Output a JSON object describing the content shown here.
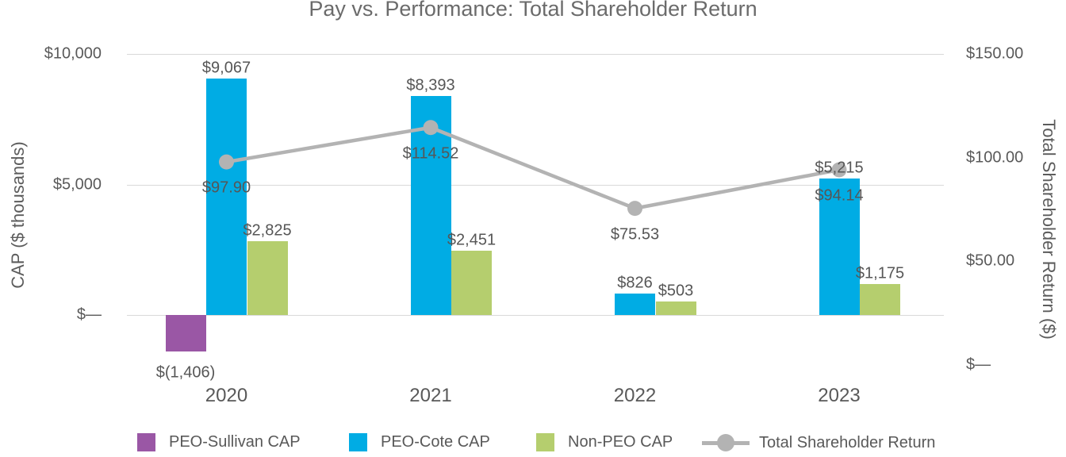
{
  "title": "Pay vs. Performance: Total Shareholder Return",
  "left_axis": {
    "title": "CAP ($ thousands)",
    "ticks": [
      {
        "label": "$10,000",
        "value": 10000
      },
      {
        "label": "$5,000",
        "value": 5000
      },
      {
        "label": "$—",
        "value": 0
      }
    ]
  },
  "right_axis": {
    "title": "Total Shareholder Return ($)",
    "ticks": [
      {
        "label": "$150.00",
        "value": 150
      },
      {
        "label": "$100.00",
        "value": 100
      },
      {
        "label": "$50.00",
        "value": 50
      },
      {
        "label": "$—",
        "value": 0
      }
    ]
  },
  "chart_data": {
    "type": "bar+line",
    "categories": [
      "2020",
      "2021",
      "2022",
      "2023"
    ],
    "left_ylabel": "CAP ($ thousands)",
    "right_ylabel": "Total Shareholder Return ($)",
    "left_ylim": [
      -2000,
      10000
    ],
    "right_ylim": [
      0,
      150
    ],
    "grid": "horizontal, at left-axis ticks",
    "legend_position": "bottom",
    "series": [
      {
        "name": "PEO-Sullivan CAP",
        "type": "bar",
        "axis": "left",
        "color": "#9a57a5",
        "values": [
          -1406,
          null,
          null,
          null
        ],
        "labels": [
          "$(1,406)",
          null,
          null,
          null
        ]
      },
      {
        "name": "PEO-Cote CAP",
        "type": "bar",
        "axis": "left",
        "color": "#00ace4",
        "values": [
          9067,
          8393,
          826,
          5215
        ],
        "labels": [
          "$9,067",
          "$8,393",
          "$826",
          "$5,215"
        ]
      },
      {
        "name": "Non-PEO CAP",
        "type": "bar",
        "axis": "left",
        "color": "#b5ce6e",
        "values": [
          2825,
          2451,
          503,
          1175
        ],
        "labels": [
          "$2,825",
          "$2,451",
          "$503",
          "$1,175"
        ]
      },
      {
        "name": "Total Shareholder Return",
        "type": "line",
        "axis": "right",
        "color": "#b3b3b3",
        "values": [
          97.9,
          114.52,
          75.53,
          94.14
        ],
        "labels": [
          "$97.90",
          "$114.52",
          "$75.53",
          "$94.14"
        ]
      }
    ]
  },
  "legend": [
    {
      "label": "PEO-Sullivan CAP",
      "swatch": "square",
      "color": "#9a57a5"
    },
    {
      "label": "PEO-Cote CAP",
      "swatch": "square",
      "color": "#00ace4"
    },
    {
      "label": "Non-PEO CAP",
      "swatch": "square",
      "color": "#b5ce6e"
    },
    {
      "label": "Total Shareholder Return",
      "swatch": "line-marker",
      "color": "#b3b3b3"
    }
  ],
  "colors": {
    "gridline": "#d9d9d9",
    "text": "#595959",
    "title_text": "#6b6b6b"
  }
}
